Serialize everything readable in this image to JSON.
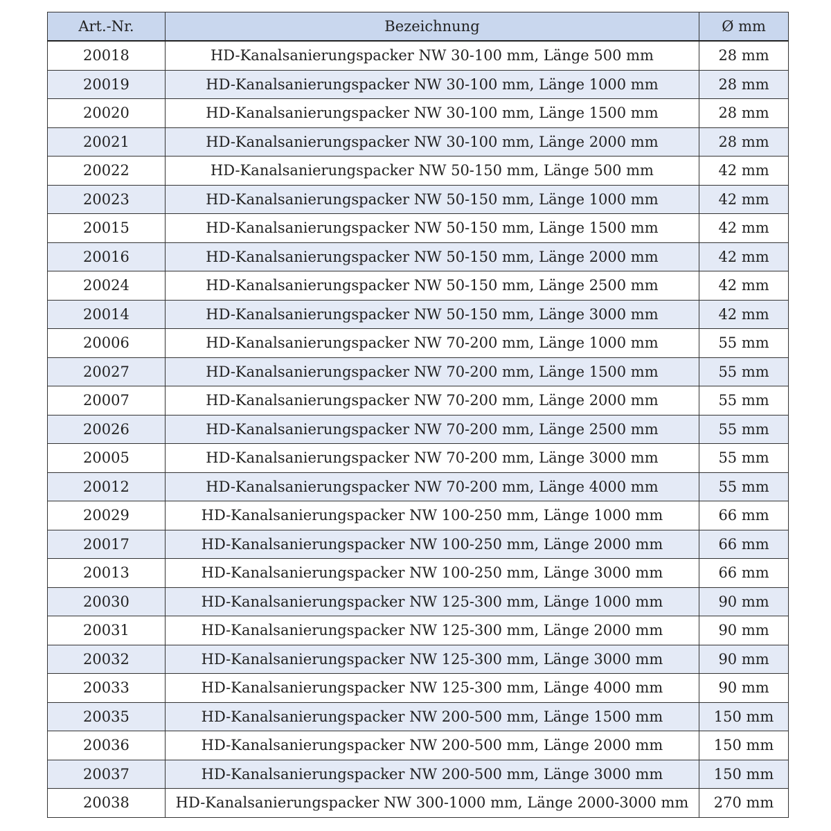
{
  "table": {
    "headers": [
      "Art.-Nr.",
      "Bezeichnung",
      "Ø mm"
    ],
    "rows": [
      [
        "20018",
        "HD-Kanalsanierungspacker NW 30-100 mm, Länge 500 mm",
        "28 mm"
      ],
      [
        "20019",
        "HD-Kanalsanierungspacker NW 30-100 mm, Länge 1000 mm",
        "28 mm"
      ],
      [
        "20020",
        "HD-Kanalsanierungspacker NW 30-100 mm, Länge 1500 mm",
        "28 mm"
      ],
      [
        "20021",
        "HD-Kanalsanierungspacker NW 30-100 mm, Länge 2000 mm",
        "28 mm"
      ],
      [
        "20022",
        "HD-Kanalsanierungspacker NW 50-150 mm, Länge 500 mm",
        "42 mm"
      ],
      [
        "20023",
        "HD-Kanalsanierungspacker NW 50-150 mm, Länge 1000 mm",
        "42 mm"
      ],
      [
        "20015",
        "HD-Kanalsanierungspacker NW 50-150 mm, Länge 1500 mm",
        "42 mm"
      ],
      [
        "20016",
        "HD-Kanalsanierungspacker NW 50-150 mm, Länge 2000 mm",
        "42 mm"
      ],
      [
        "20024",
        "HD-Kanalsanierungspacker NW 50-150 mm, Länge 2500 mm",
        "42 mm"
      ],
      [
        "20014",
        "HD-Kanalsanierungspacker NW 50-150 mm, Länge 3000 mm",
        "42 mm"
      ],
      [
        "20006",
        "HD-Kanalsanierungspacker NW 70-200 mm, Länge 1000 mm",
        "55 mm"
      ],
      [
        "20027",
        "HD-Kanalsanierungspacker NW 70-200 mm, Länge 1500 mm",
        "55 mm"
      ],
      [
        "20007",
        "HD-Kanalsanierungspacker NW 70-200 mm, Länge 2000 mm",
        "55 mm"
      ],
      [
        "20026",
        "HD-Kanalsanierungspacker NW 70-200 mm, Länge 2500 mm",
        "55 mm"
      ],
      [
        "20005",
        "HD-Kanalsanierungspacker NW 70-200 mm, Länge 3000 mm",
        "55 mm"
      ],
      [
        "20012",
        "HD-Kanalsanierungspacker NW 70-200 mm, Länge 4000 mm",
        "55 mm"
      ],
      [
        "20029",
        "HD-Kanalsanierungspacker NW 100-250 mm, Länge 1000 mm",
        "66 mm"
      ],
      [
        "20017",
        "HD-Kanalsanierungspacker NW 100-250 mm, Länge 2000 mm",
        "66 mm"
      ],
      [
        "20013",
        "HD-Kanalsanierungspacker NW 100-250 mm, Länge 3000 mm",
        "66 mm"
      ],
      [
        "20030",
        "HD-Kanalsanierungspacker NW 125-300 mm, Länge 1000 mm",
        "90 mm"
      ],
      [
        "20031",
        "HD-Kanalsanierungspacker NW 125-300 mm, Länge 2000 mm",
        "90 mm"
      ],
      [
        "20032",
        "HD-Kanalsanierungspacker NW 125-300 mm, Länge 3000 mm",
        "90 mm"
      ],
      [
        "20033",
        "HD-Kanalsanierungspacker NW 125-300 mm, Länge 4000 mm",
        "90 mm"
      ],
      [
        "20035",
        "HD-Kanalsanierungspacker NW 200-500 mm, Länge 1500 mm",
        "150 mm"
      ],
      [
        "20036",
        "HD-Kanalsanierungspacker NW 200-500 mm, Länge 2000 mm",
        "150 mm"
      ],
      [
        "20037",
        "HD-Kanalsanierungspacker NW 200-500 mm, Länge 3000 mm",
        "150 mm"
      ],
      [
        "20038",
        "HD-Kanalsanierungspacker NW 300-1000 mm, Länge 2000-3000 mm",
        "270 mm"
      ]
    ]
  },
  "colors": {
    "header_bg": "#c9d7ee",
    "alt_row_bg": "#e4eaf6"
  }
}
